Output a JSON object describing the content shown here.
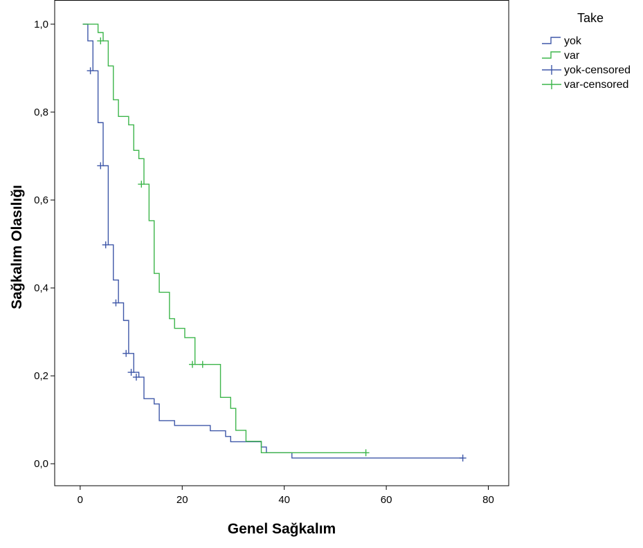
{
  "chart_data": {
    "type": "line",
    "step": true,
    "xlabel": "Genel Sağkalım",
    "ylabel": "Sağkalım Olasılığı",
    "xlim": [
      -5,
      84
    ],
    "ylim": [
      -0.05,
      1.055
    ],
    "xticks": [
      0,
      20,
      40,
      60,
      80
    ],
    "xtick_labels": [
      "0",
      "20",
      "40",
      "60",
      "80"
    ],
    "yticks": [
      0.0,
      0.2,
      0.4,
      0.6,
      0.8,
      1.0
    ],
    "ytick_labels": [
      "0,0",
      "0,2",
      "0,4",
      "0,6",
      "0,8",
      "1,0"
    ],
    "grid": false,
    "legend": {
      "title": "Take",
      "position": "top-right",
      "entries": [
        "yok",
        "var",
        "yok-censored",
        "var-censored"
      ]
    },
    "series": [
      {
        "name": "yok",
        "color": "#3e57a8",
        "steps": [
          [
            0.5,
            1.0
          ],
          [
            1.5,
            0.962
          ],
          [
            2.5,
            0.894
          ],
          [
            3.5,
            0.776
          ],
          [
            4.5,
            0.678
          ],
          [
            5.5,
            0.498
          ],
          [
            6.5,
            0.418
          ],
          [
            7.5,
            0.366
          ],
          [
            8.5,
            0.326
          ],
          [
            9.5,
            0.251
          ],
          [
            10.5,
            0.208
          ],
          [
            11.5,
            0.197
          ],
          [
            12.5,
            0.148
          ],
          [
            14.5,
            0.136
          ],
          [
            15.5,
            0.098
          ],
          [
            18.5,
            0.087
          ],
          [
            25.5,
            0.075
          ],
          [
            28.5,
            0.062
          ],
          [
            29.5,
            0.05
          ],
          [
            35.5,
            0.038
          ],
          [
            36.5,
            0.025
          ],
          [
            41.5,
            0.013
          ],
          [
            75,
            0.013
          ]
        ],
        "censored": [
          [
            2,
            0.894
          ],
          [
            4,
            0.678
          ],
          [
            5,
            0.498
          ],
          [
            7,
            0.366
          ],
          [
            9,
            0.251
          ],
          [
            10,
            0.208
          ],
          [
            11,
            0.197
          ],
          [
            75,
            0.013
          ]
        ]
      },
      {
        "name": "var",
        "color": "#3cb54a",
        "steps": [
          [
            0.5,
            1.0
          ],
          [
            3.5,
            0.981
          ],
          [
            4.5,
            0.962
          ],
          [
            5.5,
            0.905
          ],
          [
            6.5,
            0.828
          ],
          [
            7.5,
            0.79
          ],
          [
            9.5,
            0.771
          ],
          [
            10.5,
            0.713
          ],
          [
            11.5,
            0.694
          ],
          [
            12.5,
            0.636
          ],
          [
            13.5,
            0.553
          ],
          [
            14.5,
            0.433
          ],
          [
            15.5,
            0.39
          ],
          [
            17.5,
            0.33
          ],
          [
            18.5,
            0.308
          ],
          [
            20.5,
            0.287
          ],
          [
            22.5,
            0.226
          ],
          [
            27.5,
            0.151
          ],
          [
            29.5,
            0.126
          ],
          [
            30.5,
            0.076
          ],
          [
            32.5,
            0.051
          ],
          [
            35.5,
            0.025
          ],
          [
            56,
            0.025
          ]
        ],
        "censored": [
          [
            4,
            0.962
          ],
          [
            12,
            0.636
          ],
          [
            22,
            0.226
          ],
          [
            24,
            0.226
          ],
          [
            56,
            0.025
          ]
        ]
      }
    ]
  }
}
